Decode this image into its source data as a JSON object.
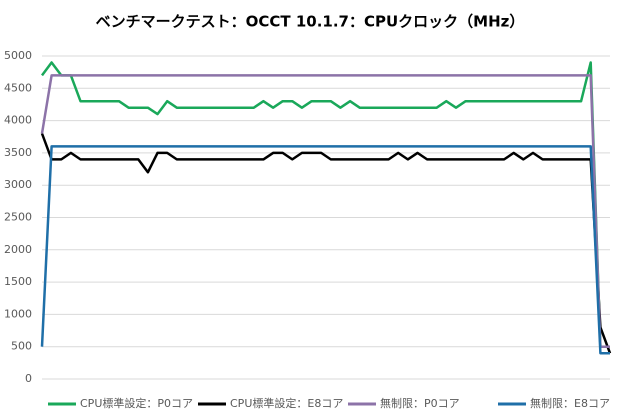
{
  "chart_data": {
    "type": "line",
    "title": "ベンチマークテスト：OCCT 10.1.7：CPUクロック（MHz）",
    "categories": [
      null,
      null,
      null,
      null,
      null,
      null,
      null,
      null,
      null,
      null,
      null,
      null,
      null,
      null,
      null,
      null,
      null,
      null,
      null,
      null,
      null,
      null,
      null,
      null,
      null,
      null,
      null,
      null,
      null,
      null,
      null,
      null,
      null,
      null,
      null,
      null,
      null,
      null,
      null,
      null,
      null,
      null,
      null,
      null,
      null,
      null,
      null,
      null,
      null,
      null,
      null,
      null,
      null,
      null,
      null,
      null,
      null,
      null,
      null,
      null
    ],
    "ylim": [
      0,
      5000
    ],
    "yticks": [
      0,
      500,
      1000,
      1500,
      2000,
      2500,
      3000,
      3500,
      4000,
      4500,
      5000
    ],
    "grid": true,
    "legend": "bottom",
    "series": [
      {
        "name": "CPU標準設定：P0コア",
        "color": "#1aa85a",
        "values": [
          4700,
          4900,
          4700,
          4700,
          4300,
          4300,
          4300,
          4300,
          4300,
          4200,
          4200,
          4200,
          4100,
          4300,
          4200,
          4200,
          4200,
          4200,
          4200,
          4200,
          4200,
          4200,
          4200,
          4300,
          4200,
          4300,
          4300,
          4200,
          4300,
          4300,
          4300,
          4200,
          4300,
          4200,
          4200,
          4200,
          4200,
          4200,
          4200,
          4200,
          4200,
          4200,
          4300,
          4200,
          4300,
          4300,
          4300,
          4300,
          4300,
          4300,
          4300,
          4300,
          4300,
          4300,
          4300,
          4300,
          4300,
          4900,
          500,
          500
        ]
      },
      {
        "name": "CPU標準設定：E8コア",
        "color": "#000000",
        "values": [
          3800,
          3400,
          3400,
          3500,
          3400,
          3400,
          3400,
          3400,
          3400,
          3400,
          3400,
          3200,
          3500,
          3500,
          3400,
          3400,
          3400,
          3400,
          3400,
          3400,
          3400,
          3400,
          3400,
          3400,
          3500,
          3500,
          3400,
          3500,
          3500,
          3500,
          3400,
          3400,
          3400,
          3400,
          3400,
          3400,
          3400,
          3500,
          3400,
          3500,
          3400,
          3400,
          3400,
          3400,
          3400,
          3400,
          3400,
          3400,
          3400,
          3500,
          3400,
          3500,
          3400,
          3400,
          3400,
          3400,
          3400,
          3400,
          800,
          400
        ]
      },
      {
        "name": "無制限：P0コア",
        "color": "#8c73a8",
        "values": [
          3800,
          4700,
          4700,
          4700,
          4700,
          4700,
          4700,
          4700,
          4700,
          4700,
          4700,
          4700,
          4700,
          4700,
          4700,
          4700,
          4700,
          4700,
          4700,
          4700,
          4700,
          4700,
          4700,
          4700,
          4700,
          4700,
          4700,
          4700,
          4700,
          4700,
          4700,
          4700,
          4700,
          4700,
          4700,
          4700,
          4700,
          4700,
          4700,
          4700,
          4700,
          4700,
          4700,
          4700,
          4700,
          4700,
          4700,
          4700,
          4700,
          4700,
          4700,
          4700,
          4700,
          4700,
          4700,
          4700,
          4700,
          4700,
          500,
          500
        ]
      },
      {
        "name": "無制限：E8コア",
        "color": "#1f6fa8",
        "values": [
          500,
          3600,
          3600,
          3600,
          3600,
          3600,
          3600,
          3600,
          3600,
          3600,
          3600,
          3600,
          3600,
          3600,
          3600,
          3600,
          3600,
          3600,
          3600,
          3600,
          3600,
          3600,
          3600,
          3600,
          3600,
          3600,
          3600,
          3600,
          3600,
          3600,
          3600,
          3600,
          3600,
          3600,
          3600,
          3600,
          3600,
          3600,
          3600,
          3600,
          3600,
          3600,
          3600,
          3600,
          3600,
          3600,
          3600,
          3600,
          3600,
          3600,
          3600,
          3600,
          3600,
          3600,
          3600,
          3600,
          3600,
          3600,
          400,
          400
        ]
      }
    ]
  }
}
